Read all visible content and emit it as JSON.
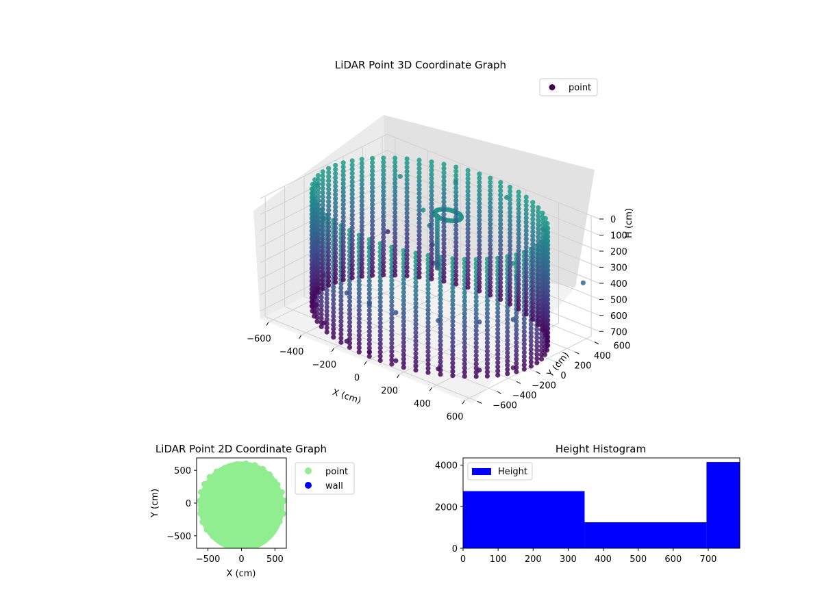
{
  "chart_data": [
    {
      "type": "scatter",
      "dimensions": 3,
      "title": "LiDAR Point 3D Coordinate Graph",
      "xlabel": "X (cm)",
      "ylabel": "Y (cm)",
      "zlabel": "H (cm)",
      "xlim": [
        -650,
        650
      ],
      "ylim": [
        -650,
        650
      ],
      "zlim": [
        0,
        750
      ],
      "z_inverted": true,
      "xticks": [
        -600,
        -400,
        -200,
        0,
        200,
        400,
        600
      ],
      "yticks": [
        -600,
        -400,
        -200,
        0,
        200,
        400,
        600
      ],
      "zticks": [
        0,
        100,
        200,
        300,
        400,
        500,
        600,
        700
      ],
      "grid": true,
      "legend": {
        "position": "top-right",
        "entries": [
          "point"
        ]
      },
      "colormap": "viridis",
      "marker_color": "#440154",
      "series": [
        {
          "name": "point",
          "structure": "cylindrical wall of radius about 620 cm spanning heights 0 to 750 cm, plus a ceiling fixture near the center and scattered outliers",
          "points": [
            [
              -600,
              -150,
              700
            ],
            [
              -500,
              -330,
              700
            ],
            [
              -350,
              -500,
              700
            ],
            [
              -150,
              -600,
              700
            ],
            [
              0,
              -620,
              700
            ],
            [
              150,
              -600,
              700
            ],
            [
              350,
              -500,
              700
            ],
            [
              500,
              -330,
              700
            ],
            [
              600,
              -150,
              700
            ],
            [
              -600,
              -150,
              400
            ],
            [
              -500,
              -330,
              400
            ],
            [
              -350,
              -500,
              400
            ],
            [
              -150,
              -600,
              400
            ],
            [
              0,
              -620,
              400
            ],
            [
              150,
              -600,
              400
            ],
            [
              350,
              -500,
              400
            ],
            [
              500,
              -330,
              400
            ],
            [
              600,
              -150,
              400
            ],
            [
              -600,
              -150,
              50
            ],
            [
              -350,
              -500,
              50
            ],
            [
              0,
              -620,
              50
            ],
            [
              350,
              -500,
              50
            ],
            [
              600,
              -150,
              50
            ],
            [
              -450,
              450,
              120
            ],
            [
              -200,
              600,
              100
            ],
            [
              100,
              620,
              80
            ],
            [
              400,
              500,
              120
            ],
            [
              -100,
              100,
              80
            ],
            [
              -50,
              80,
              150
            ],
            [
              -20,
              60,
              250
            ],
            [
              0,
              40,
              350
            ],
            [
              700,
              400,
              300
            ],
            [
              650,
              -200,
              100
            ],
            [
              -640,
              640,
              600
            ]
          ]
        }
      ]
    },
    {
      "type": "scatter",
      "dimensions": 2,
      "title": "LiDAR Point 2D Coordinate Graph",
      "xlabel": "X (cm)",
      "ylabel": "Y (cm)",
      "xlim": [
        -670,
        670
      ],
      "ylim": [
        -690,
        690
      ],
      "xticks": [
        -500,
        0,
        500
      ],
      "yticks": [
        -500,
        0,
        500
      ],
      "legend": {
        "position": "outside-right",
        "entries": [
          "point",
          "wall"
        ]
      },
      "series": [
        {
          "name": "point",
          "color": "#90ee90",
          "structure": "dense disk of points filling the circle of radius about 640 cm",
          "disk_radius": 640
        },
        {
          "name": "wall",
          "color": "#0000ff",
          "points": []
        }
      ]
    },
    {
      "type": "histogram",
      "title": "Height Histogram",
      "legend": {
        "position": "top-left",
        "entries": [
          "Height"
        ]
      },
      "color": "#0000ff",
      "xlim": [
        0,
        790
      ],
      "ylim": [
        0,
        4350
      ],
      "xticks": [
        0,
        100,
        200,
        300,
        400,
        500,
        600,
        700
      ],
      "yticks": [
        0,
        2000,
        4000
      ],
      "series": [
        {
          "name": "Height",
          "bins": [
            {
              "start": 0,
              "end": 347,
              "count": 2750
            },
            {
              "start": 347,
              "end": 695,
              "count": 1250
            },
            {
              "start": 695,
              "end": 790,
              "count": 4150
            }
          ]
        }
      ]
    }
  ]
}
